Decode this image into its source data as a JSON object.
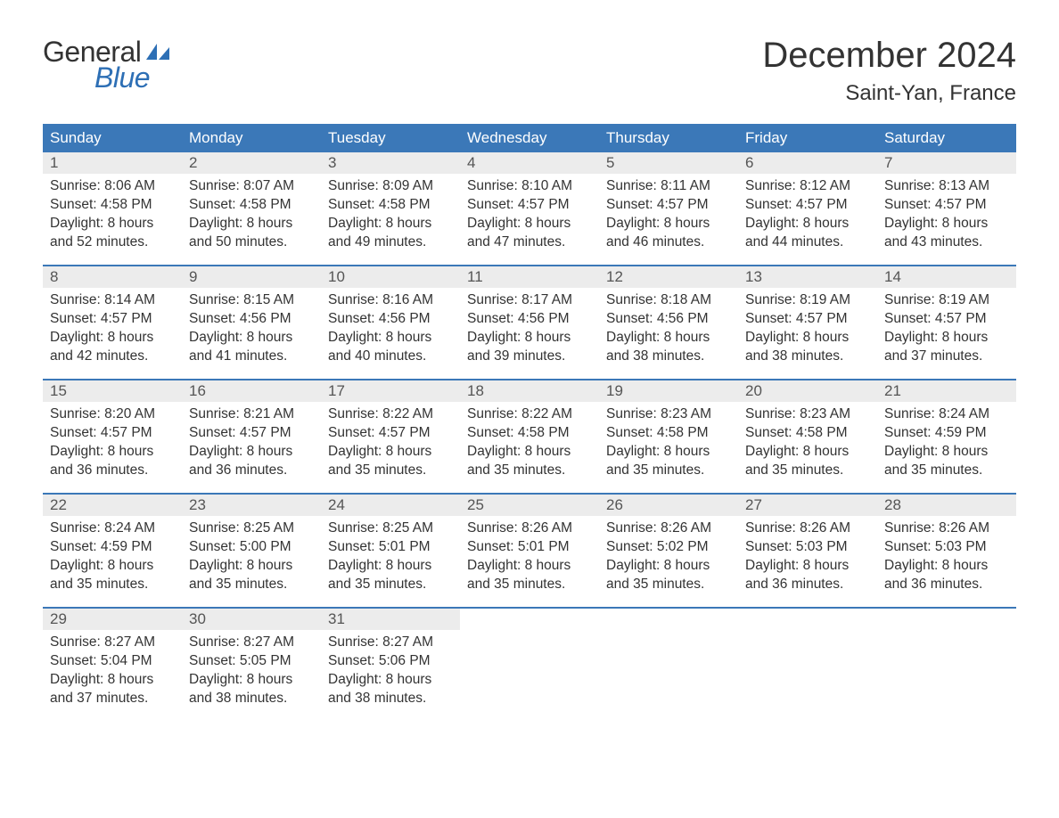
{
  "logo": {
    "text_general": "General",
    "text_blue": "Blue",
    "general_color": "#333333",
    "blue_color": "#2d6fb5",
    "sail_color": "#2d6fb5"
  },
  "header": {
    "month_title": "December 2024",
    "location": "Saint-Yan, France",
    "title_color": "#333333",
    "title_fontsize": 40,
    "location_fontsize": 24
  },
  "calendar": {
    "header_bg": "#3b78b8",
    "header_text_color": "#ffffff",
    "week_border_color": "#3b78b8",
    "daynum_bg": "#ececec",
    "text_color": "#333333",
    "content_fontsize": 15.5,
    "day_headers": [
      "Sunday",
      "Monday",
      "Tuesday",
      "Wednesday",
      "Thursday",
      "Friday",
      "Saturday"
    ],
    "weeks": [
      [
        {
          "d": "1",
          "sunrise": "8:06 AM",
          "sunset": "4:58 PM",
          "dl1": "Daylight: 8 hours",
          "dl2": "and 52 minutes."
        },
        {
          "d": "2",
          "sunrise": "8:07 AM",
          "sunset": "4:58 PM",
          "dl1": "Daylight: 8 hours",
          "dl2": "and 50 minutes."
        },
        {
          "d": "3",
          "sunrise": "8:09 AM",
          "sunset": "4:58 PM",
          "dl1": "Daylight: 8 hours",
          "dl2": "and 49 minutes."
        },
        {
          "d": "4",
          "sunrise": "8:10 AM",
          "sunset": "4:57 PM",
          "dl1": "Daylight: 8 hours",
          "dl2": "and 47 minutes."
        },
        {
          "d": "5",
          "sunrise": "8:11 AM",
          "sunset": "4:57 PM",
          "dl1": "Daylight: 8 hours",
          "dl2": "and 46 minutes."
        },
        {
          "d": "6",
          "sunrise": "8:12 AM",
          "sunset": "4:57 PM",
          "dl1": "Daylight: 8 hours",
          "dl2": "and 44 minutes."
        },
        {
          "d": "7",
          "sunrise": "8:13 AM",
          "sunset": "4:57 PM",
          "dl1": "Daylight: 8 hours",
          "dl2": "and 43 minutes."
        }
      ],
      [
        {
          "d": "8",
          "sunrise": "8:14 AM",
          "sunset": "4:57 PM",
          "dl1": "Daylight: 8 hours",
          "dl2": "and 42 minutes."
        },
        {
          "d": "9",
          "sunrise": "8:15 AM",
          "sunset": "4:56 PM",
          "dl1": "Daylight: 8 hours",
          "dl2": "and 41 minutes."
        },
        {
          "d": "10",
          "sunrise": "8:16 AM",
          "sunset": "4:56 PM",
          "dl1": "Daylight: 8 hours",
          "dl2": "and 40 minutes."
        },
        {
          "d": "11",
          "sunrise": "8:17 AM",
          "sunset": "4:56 PM",
          "dl1": "Daylight: 8 hours",
          "dl2": "and 39 minutes."
        },
        {
          "d": "12",
          "sunrise": "8:18 AM",
          "sunset": "4:56 PM",
          "dl1": "Daylight: 8 hours",
          "dl2": "and 38 minutes."
        },
        {
          "d": "13",
          "sunrise": "8:19 AM",
          "sunset": "4:57 PM",
          "dl1": "Daylight: 8 hours",
          "dl2": "and 38 minutes."
        },
        {
          "d": "14",
          "sunrise": "8:19 AM",
          "sunset": "4:57 PM",
          "dl1": "Daylight: 8 hours",
          "dl2": "and 37 minutes."
        }
      ],
      [
        {
          "d": "15",
          "sunrise": "8:20 AM",
          "sunset": "4:57 PM",
          "dl1": "Daylight: 8 hours",
          "dl2": "and 36 minutes."
        },
        {
          "d": "16",
          "sunrise": "8:21 AM",
          "sunset": "4:57 PM",
          "dl1": "Daylight: 8 hours",
          "dl2": "and 36 minutes."
        },
        {
          "d": "17",
          "sunrise": "8:22 AM",
          "sunset": "4:57 PM",
          "dl1": "Daylight: 8 hours",
          "dl2": "and 35 minutes."
        },
        {
          "d": "18",
          "sunrise": "8:22 AM",
          "sunset": "4:58 PM",
          "dl1": "Daylight: 8 hours",
          "dl2": "and 35 minutes."
        },
        {
          "d": "19",
          "sunrise": "8:23 AM",
          "sunset": "4:58 PM",
          "dl1": "Daylight: 8 hours",
          "dl2": "and 35 minutes."
        },
        {
          "d": "20",
          "sunrise": "8:23 AM",
          "sunset": "4:58 PM",
          "dl1": "Daylight: 8 hours",
          "dl2": "and 35 minutes."
        },
        {
          "d": "21",
          "sunrise": "8:24 AM",
          "sunset": "4:59 PM",
          "dl1": "Daylight: 8 hours",
          "dl2": "and 35 minutes."
        }
      ],
      [
        {
          "d": "22",
          "sunrise": "8:24 AM",
          "sunset": "4:59 PM",
          "dl1": "Daylight: 8 hours",
          "dl2": "and 35 minutes."
        },
        {
          "d": "23",
          "sunrise": "8:25 AM",
          "sunset": "5:00 PM",
          "dl1": "Daylight: 8 hours",
          "dl2": "and 35 minutes."
        },
        {
          "d": "24",
          "sunrise": "8:25 AM",
          "sunset": "5:01 PM",
          "dl1": "Daylight: 8 hours",
          "dl2": "and 35 minutes."
        },
        {
          "d": "25",
          "sunrise": "8:26 AM",
          "sunset": "5:01 PM",
          "dl1": "Daylight: 8 hours",
          "dl2": "and 35 minutes."
        },
        {
          "d": "26",
          "sunrise": "8:26 AM",
          "sunset": "5:02 PM",
          "dl1": "Daylight: 8 hours",
          "dl2": "and 35 minutes."
        },
        {
          "d": "27",
          "sunrise": "8:26 AM",
          "sunset": "5:03 PM",
          "dl1": "Daylight: 8 hours",
          "dl2": "and 36 minutes."
        },
        {
          "d": "28",
          "sunrise": "8:26 AM",
          "sunset": "5:03 PM",
          "dl1": "Daylight: 8 hours",
          "dl2": "and 36 minutes."
        }
      ],
      [
        {
          "d": "29",
          "sunrise": "8:27 AM",
          "sunset": "5:04 PM",
          "dl1": "Daylight: 8 hours",
          "dl2": "and 37 minutes."
        },
        {
          "d": "30",
          "sunrise": "8:27 AM",
          "sunset": "5:05 PM",
          "dl1": "Daylight: 8 hours",
          "dl2": "and 38 minutes."
        },
        {
          "d": "31",
          "sunrise": "8:27 AM",
          "sunset": "5:06 PM",
          "dl1": "Daylight: 8 hours",
          "dl2": "and 38 minutes."
        },
        null,
        null,
        null,
        null
      ]
    ]
  },
  "labels": {
    "sunrise_prefix": "Sunrise: ",
    "sunset_prefix": "Sunset: "
  }
}
